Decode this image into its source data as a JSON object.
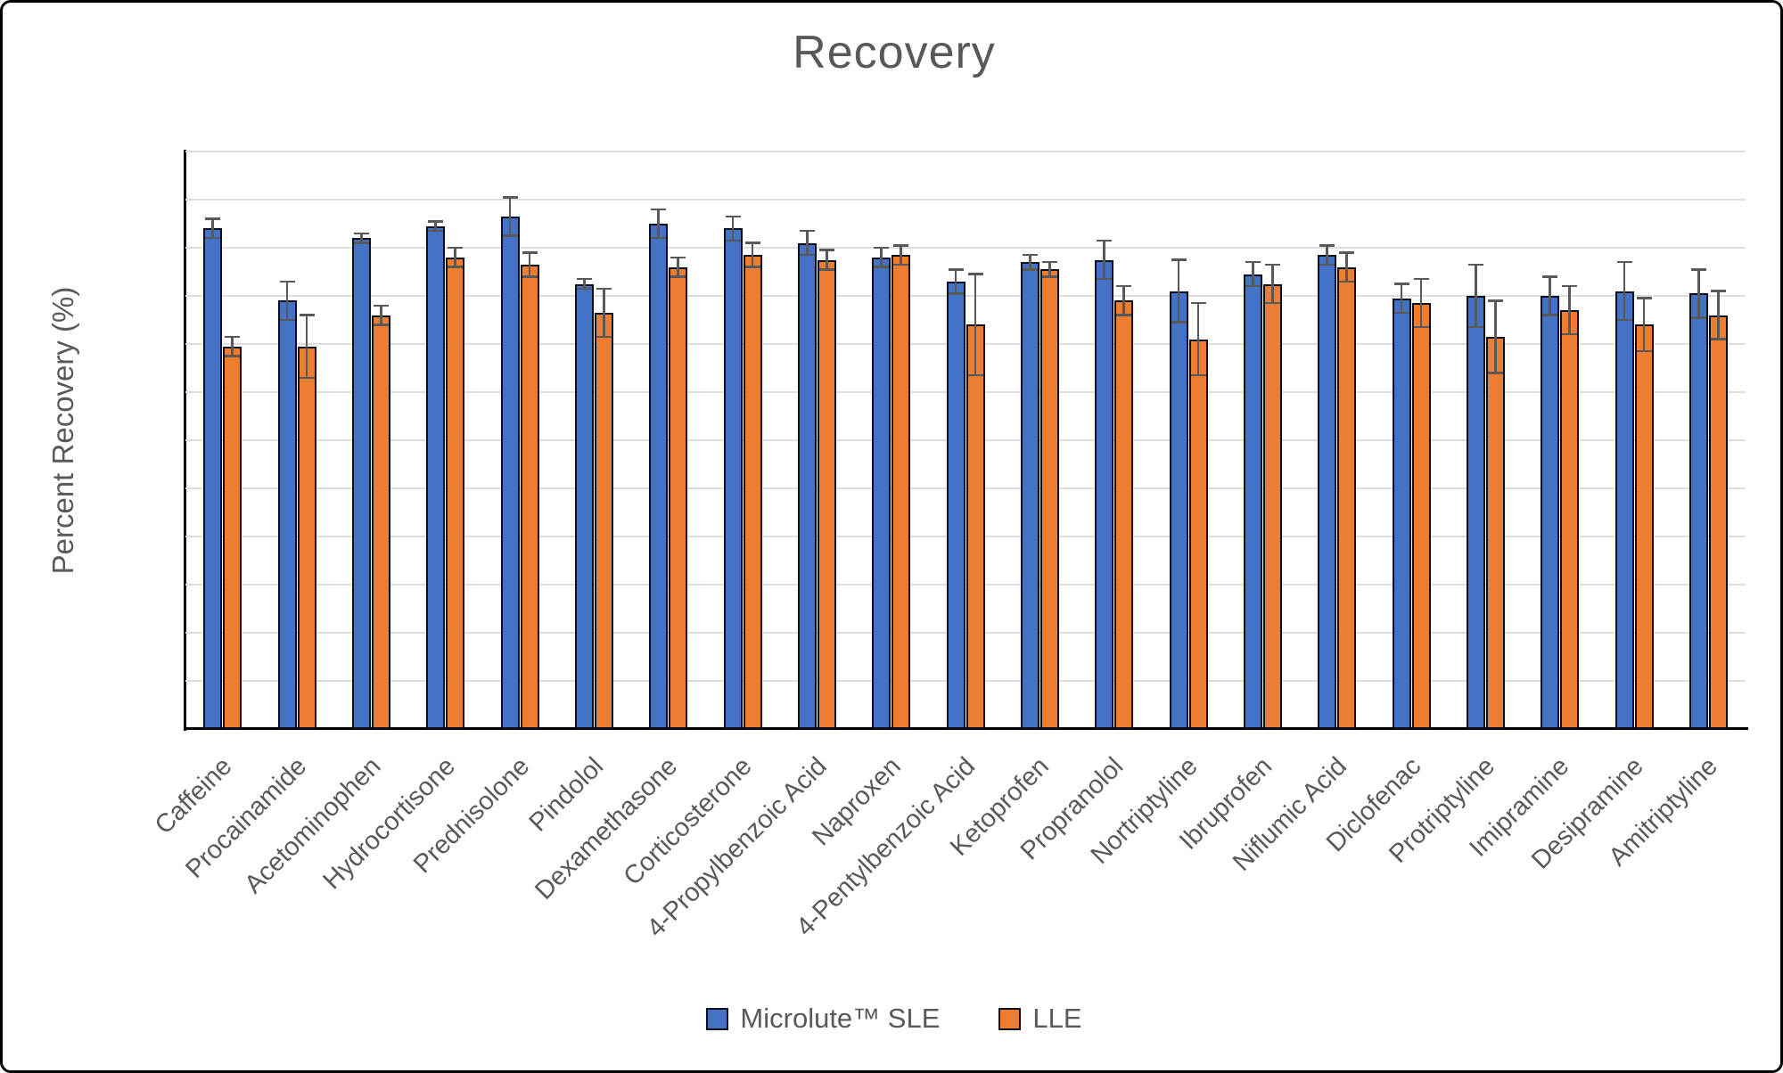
{
  "title": "Recovery",
  "colors": {
    "sle_fill": "#4472C4",
    "lle_fill": "#ED7D31",
    "bar_border": "#0c0f1d",
    "error_bar": "#595959",
    "gridline": "#dedede",
    "axis": "#000000",
    "text": "#595959"
  },
  "chart_data": {
    "type": "bar",
    "title": "Recovery",
    "xlabel": "",
    "ylabel": "Percent Recovery (%)",
    "ylim": [
      0,
      120
    ],
    "ytick_step": 10,
    "grid": true,
    "legend_position": "bottom",
    "error_bars": true,
    "categories": [
      "Caffeine",
      "Procainamide",
      "Acetominophen",
      "Hydrocortisone",
      "Prednisolone",
      "Pindolol",
      "Dexamethasone",
      "Corticosterone",
      "4-Propylbenzoic Acid",
      "Naproxen",
      "4-Pentylbenzoic Acid",
      "Ketoprofen",
      "Propranolol",
      "Nortriptyline",
      "Ibruprofen",
      "Niflumic Acid",
      "Diclofenac",
      "Protriptyline",
      "Imipramine",
      "Desipramine",
      "Amitriptyline"
    ],
    "series": [
      {
        "name": "Microlute™ SLE",
        "color": "#4472C4",
        "values": [
          104,
          89,
          102,
          104.5,
          106.5,
          92.5,
          105,
          104,
          101,
          98,
          93,
          97,
          97.5,
          91,
          94.5,
          98.5,
          89.5,
          90,
          90,
          91,
          90.5
        ],
        "errors": [
          2,
          4,
          1,
          1,
          4,
          1,
          3,
          2.5,
          2.5,
          2,
          2.5,
          1.5,
          4,
          6.5,
          2.5,
          2,
          3,
          6.5,
          4,
          6,
          5
        ]
      },
      {
        "name": "LLE",
        "color": "#ED7D31",
        "values": [
          79.5,
          79.5,
          86,
          98,
          96.5,
          86.5,
          96,
          98.5,
          97.5,
          98.5,
          84,
          95.5,
          89,
          81,
          92.5,
          96,
          88.5,
          81.5,
          87,
          84,
          86
        ],
        "errors": [
          2,
          6.5,
          2,
          2,
          2.5,
          5,
          2,
          2.5,
          2,
          2,
          10.5,
          1.5,
          3,
          7.5,
          4,
          3,
          5,
          7.5,
          5,
          5.5,
          5
        ]
      }
    ]
  }
}
